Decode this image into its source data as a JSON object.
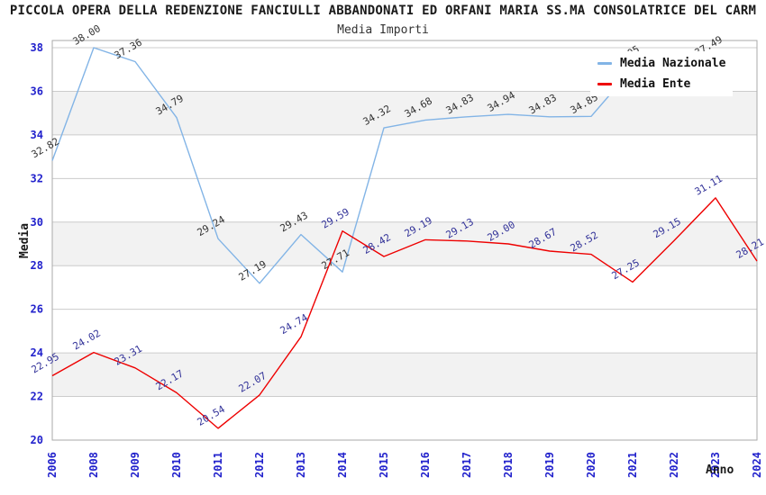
{
  "chart_data": {
    "type": "line",
    "title": "PICCOLA OPERA DELLA REDENZIONE FANCIULLI ABBANDONATI ED ORFANI MARIA SS.MA CONSOLATRICE DEL CARM",
    "subtitle": "Media Importi",
    "xlabel": "Anno",
    "ylabel": "Media",
    "ylim": [
      20,
      38.33
    ],
    "yticks": [
      20,
      22,
      24,
      26,
      28,
      30,
      32,
      34,
      36,
      38
    ],
    "categories": [
      "2006",
      "2008",
      "2009",
      "2010",
      "2011",
      "2012",
      "2013",
      "2014",
      "2015",
      "2016",
      "2017",
      "2018",
      "2019",
      "2020",
      "2021",
      "2022",
      "2023",
      "2024"
    ],
    "series": [
      {
        "name": "Media Nazionale",
        "color": "#82b4e6",
        "label_color": "#333333",
        "values": [
          32.82,
          38.0,
          37.36,
          34.79,
          29.24,
          27.19,
          29.43,
          27.71,
          34.32,
          34.68,
          34.83,
          34.94,
          34.83,
          34.85,
          37.05,
          null,
          37.49,
          null
        ]
      },
      {
        "name": "Media Ente",
        "color": "#ee0000",
        "label_color": "#333399",
        "values": [
          22.95,
          24.02,
          23.31,
          22.17,
          20.54,
          22.07,
          24.74,
          29.59,
          28.42,
          29.19,
          29.13,
          29.0,
          28.67,
          28.52,
          27.25,
          29.15,
          31.11,
          28.21
        ]
      }
    ],
    "legend_position": "top-right",
    "grid": "horizontal",
    "gray_bands": [
      [
        22,
        24
      ],
      [
        28,
        30
      ],
      [
        34,
        36
      ]
    ],
    "colors": {
      "tick_label": "#2222cc",
      "gridline": "#cccccc",
      "band": "#f2f2f2",
      "plot_border": "#aaaaaa",
      "background": "#ffffff"
    }
  }
}
